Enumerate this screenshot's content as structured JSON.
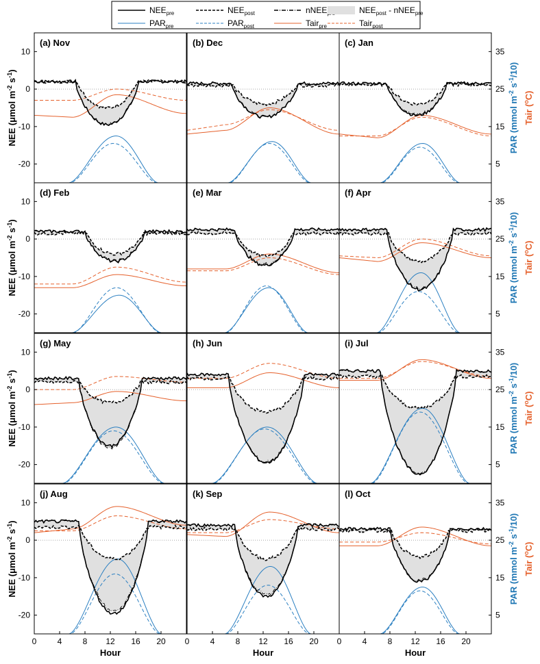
{
  "chart_data": {
    "type": "line",
    "layout_grid": "4 rows x 3 columns of panels",
    "x_axis": {
      "label": "Hour",
      "range": [
        0,
        24
      ],
      "ticks": [
        0,
        4,
        8,
        12,
        16,
        20
      ]
    },
    "left_axis": {
      "label_main": "NEE (",
      "label_mu": "μ",
      "label_units": "mol m",
      "label_exp1": "-2",
      "label_s": " s",
      "label_exp2": "-1",
      "label_close": ")",
      "range": [
        -25,
        15
      ],
      "ticks": [
        -20,
        -10,
        0,
        10
      ]
    },
    "right_axis_par": {
      "label_main": "PAR (mmol m",
      "label_exp1": "-2",
      "label_s": " s",
      "label_exp2": "-1",
      "label_close": "/10)",
      "color": "#1f77b4",
      "range": [
        0,
        40
      ],
      "ticks": [
        5,
        15,
        25,
        35
      ]
    },
    "right_axis_tair": {
      "label_main": "Tair (",
      "label_exp": "o",
      "label_close": "C)",
      "color": "#e5602b"
    },
    "colors": {
      "nee": "#000000",
      "par": "#2a7fc1",
      "tair": "#e5602b",
      "fill": "#e0e0e0",
      "zero": "#888888"
    },
    "legend": {
      "placement": "top-center",
      "items": [
        {
          "base": "NEE",
          "sub": "pre",
          "style": "solid",
          "color": "#000000"
        },
        {
          "base": "NEE",
          "sub": "post",
          "style": "dashed",
          "color": "#000000"
        },
        {
          "base": "nNEE",
          "sub": "pre",
          "style": "dashdot",
          "color": "#000000"
        },
        {
          "base": "NEE",
          "sub": "post",
          "suffix": " - nNEE",
          "sub2": "pre",
          "style": "fill",
          "color": "#e0e0e0"
        },
        {
          "base": "PAR",
          "sub": "pre",
          "style": "solid",
          "color": "#2a7fc1"
        },
        {
          "base": "PAR",
          "sub": "post",
          "style": "dashed",
          "color": "#2a7fc1"
        },
        {
          "base": "Tair",
          "sub": "pre",
          "style": "solid",
          "color": "#e5602b"
        },
        {
          "base": "Tair",
          "sub": "post",
          "style": "dashed",
          "color": "#e5602b"
        }
      ]
    },
    "panels": [
      {
        "title": "(a) Nov",
        "nee_pre_day": 2,
        "nee_pre_min": -9.5,
        "nee_post_day": 2,
        "nee_post_min": -5,
        "nnee_min": -9,
        "day_start": 6.5,
        "day_end": 16.5,
        "par_pre_peak": 12.5,
        "par_post_peak": 10.5,
        "par_start": 5.5,
        "par_end": 19.5,
        "tair_pre": [
          -7,
          -7.5,
          -1.5,
          -6.5
        ],
        "tair_post": [
          -3,
          -3,
          0,
          -3
        ]
      },
      {
        "title": "(b) Dec",
        "nee_pre_day": 1.5,
        "nee_pre_min": -7.5,
        "nee_post_day": 1,
        "nee_post_min": -4,
        "nnee_min": -7,
        "day_start": 7,
        "day_end": 17.5,
        "par_pre_peak": 11,
        "par_post_peak": 10.5,
        "par_start": 6.5,
        "par_end": 19.5,
        "tair_pre": [
          -12,
          -11,
          -5,
          -12
        ],
        "tair_post": [
          -11,
          -9.5,
          -5.5,
          -11
        ]
      },
      {
        "title": "(c) Jan",
        "nee_pre_day": 1.5,
        "nee_pre_min": -7,
        "nee_post_day": 1.2,
        "nee_post_min": -4,
        "nnee_min": -6.5,
        "day_start": 7.5,
        "day_end": 17,
        "par_pre_peak": 10.5,
        "par_post_peak": 9.5,
        "par_start": 6.5,
        "par_end": 19,
        "tair_pre": [
          -12,
          -13,
          -7,
          -12
        ],
        "tair_post": [
          -12.5,
          -12.5,
          -7.5,
          -12.5
        ]
      },
      {
        "title": "(d) Feb",
        "nee_pre_day": 2,
        "nee_pre_min": -6,
        "nee_post_day": 1.5,
        "nee_post_min": -4,
        "nnee_min": -5.5,
        "day_start": 8,
        "day_end": 17.5,
        "par_pre_peak": 10,
        "par_post_peak": 12,
        "par_start": 6,
        "par_end": 20,
        "tair_pre": [
          -13,
          -13,
          -9.5,
          -12.5
        ],
        "tair_post": [
          -12,
          -12,
          -7.5,
          -11.5
        ]
      },
      {
        "title": "(e) Mar",
        "nee_pre_day": 2.5,
        "nee_pre_min": -7,
        "nee_post_day": 1.5,
        "nee_post_min": -4.5,
        "nnee_min": -6.5,
        "day_start": 7.5,
        "day_end": 17,
        "par_pre_peak": 12,
        "par_post_peak": 12.5,
        "par_start": 6,
        "par_end": 19,
        "tair_pre": [
          -8,
          -8,
          -4,
          -9
        ],
        "tair_post": [
          -8.5,
          -8.5,
          -5,
          -9.5
        ]
      },
      {
        "title": "(f) Apr",
        "nee_pre_day": 2.5,
        "nee_pre_min": -13.5,
        "nee_post_day": 1.5,
        "nee_post_min": -6,
        "nnee_min": -13,
        "day_start": 7.5,
        "day_end": 18,
        "par_pre_peak": 16,
        "par_post_peak": 11,
        "par_start": 6,
        "par_end": 19,
        "tair_pre": [
          -5,
          -6,
          -1,
          -5
        ],
        "tair_post": [
          -4.5,
          -5,
          0,
          -4.5
        ]
      },
      {
        "title": "(g) May",
        "nee_pre_day": 3,
        "nee_pre_min": -15,
        "nee_post_day": 2,
        "nee_post_min": -3.5,
        "nnee_min": -16,
        "day_start": 7,
        "day_end": 17,
        "par_pre_peak": 15,
        "par_post_peak": 14,
        "par_start": 4.5,
        "par_end": 20.5,
        "tair_pre": [
          -4,
          -3.5,
          -0.5,
          -3
        ],
        "tair_post": [
          0,
          0,
          3.5,
          2
        ]
      },
      {
        "title": "(h) Jun",
        "nee_pre_day": 4,
        "nee_pre_min": -19.5,
        "nee_post_day": 3,
        "nee_post_min": -6,
        "nnee_min": -19,
        "day_start": 6.5,
        "day_end": 18.5,
        "par_pre_peak": 15,
        "par_post_peak": 14.5,
        "par_start": 4,
        "par_end": 20.5,
        "tair_pre": [
          0.5,
          0.5,
          4.5,
          0.5
        ],
        "tair_post": [
          3,
          3,
          7,
          3
        ]
      },
      {
        "title": "(i) Jul",
        "nee_pre_day": 5,
        "nee_pre_min": -22.5,
        "nee_post_day": 3.5,
        "nee_post_min": -5,
        "nnee_min": -22,
        "day_start": 6.5,
        "day_end": 18.5,
        "par_pre_peak": 20,
        "par_post_peak": 19,
        "par_start": 5,
        "par_end": 20.5,
        "tair_pre": [
          2.5,
          2.5,
          8,
          3
        ],
        "tair_post": [
          3,
          3,
          7.5,
          3.5
        ]
      },
      {
        "title": "(j) Aug",
        "nee_pre_day": 5,
        "nee_pre_min": -19.5,
        "nee_post_day": 3.5,
        "nee_post_min": -5,
        "nnee_min": -18,
        "day_start": 7,
        "day_end": 18,
        "par_pre_peak": 20,
        "par_post_peak": 16,
        "par_start": 5.5,
        "par_end": 20,
        "tair_pre": [
          2,
          3,
          9,
          4
        ],
        "tair_post": [
          2.5,
          2.5,
          6.5,
          3
        ]
      },
      {
        "title": "(k) Sep",
        "nee_pre_day": 4,
        "nee_pre_min": -15,
        "nee_post_day": 3,
        "nee_post_min": -5,
        "nnee_min": -14,
        "day_start": 7.5,
        "day_end": 17.5,
        "par_pre_peak": 18,
        "par_post_peak": 13,
        "par_start": 6,
        "par_end": 19.5,
        "tair_pre": [
          1.5,
          1,
          7.5,
          2
        ],
        "tair_post": [
          2,
          2,
          5.5,
          3
        ]
      },
      {
        "title": "(l) Oct",
        "nee_pre_day": 3,
        "nee_pre_min": -11,
        "nee_post_day": 2.5,
        "nee_post_min": -4.5,
        "nnee_min": -10.5,
        "day_start": 8,
        "day_end": 17.5,
        "par_pre_peak": 12.5,
        "par_post_peak": 11.5,
        "par_start": 6.5,
        "par_end": 19,
        "tair_pre": [
          -1.5,
          -1.5,
          3.5,
          -1.5
        ],
        "tair_post": [
          -0.5,
          -0.5,
          2,
          -1
        ]
      }
    ]
  }
}
